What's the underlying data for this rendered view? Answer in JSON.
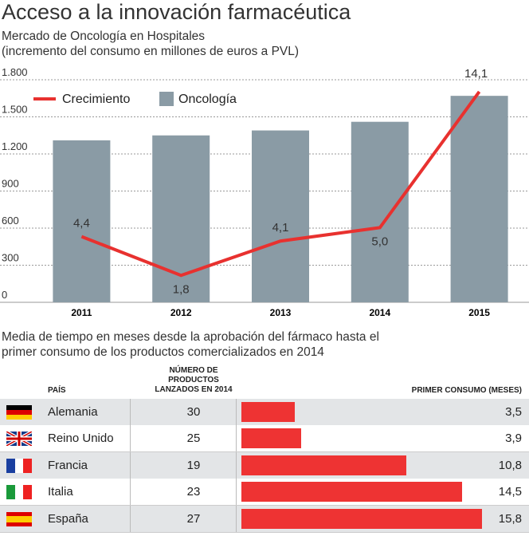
{
  "title": "Acceso a la innovación farmacéutica",
  "chart_data": {
    "type": "bar",
    "subtitle": "Mercado de Oncología en Hospitales",
    "note": "(incremento del consumo en millones de euros a PVL)",
    "categories": [
      "2011",
      "2012",
      "2013",
      "2014",
      "2015"
    ],
    "series": [
      {
        "name": "Crecimiento",
        "type": "line",
        "color": "#e8312f",
        "axis": "y2",
        "values": [
          4.4,
          1.8,
          4.1,
          5.0,
          14.1
        ],
        "value_labels": [
          "4,4",
          "1,8",
          "4,1",
          "5,0",
          "14,1"
        ]
      },
      {
        "name": "Oncología",
        "type": "bar",
        "color": "#8a9ba5",
        "values": [
          1310,
          1350,
          1390,
          1460,
          1670
        ]
      }
    ],
    "ylim": [
      0,
      1800
    ],
    "yticks": [
      0,
      300,
      600,
      900,
      {
        "value": 1200,
        "label": "1.200"
      },
      {
        "value": 1500,
        "label": "1.500"
      },
      {
        "value": 1800,
        "label": "1.800"
      }
    ],
    "y2lim": [
      0,
      14.9
    ],
    "grid": true,
    "legend": "top-left"
  },
  "table": {
    "title": [
      "Media de tiempo en meses desde la aprobación del fármaco hasta el",
      "primer consumo de los productos comercializados en 2014"
    ],
    "columns": {
      "country": "PAÍS",
      "products": [
        "NÚMERO DE",
        "PRODUCTOS",
        "LANZADOS EN 2014"
      ],
      "months": "PRIMER CONSUMO (MESES)"
    },
    "bar_color": "#ee3333",
    "xlim": [
      0,
      16
    ],
    "rows": [
      {
        "country": "Alemania",
        "products": 30,
        "months": 3.5,
        "months_label": "3,5"
      },
      {
        "country": "Reino Unido",
        "products": 25,
        "months": 3.9,
        "months_label": "3,9"
      },
      {
        "country": "Francia",
        "products": 19,
        "months": 10.8,
        "months_label": "10,8"
      },
      {
        "country": "Italia",
        "products": 23,
        "months": 14.5,
        "months_label": "14,5"
      },
      {
        "country": "España",
        "products": 27,
        "months": 15.8,
        "months_label": "15,8"
      }
    ]
  }
}
